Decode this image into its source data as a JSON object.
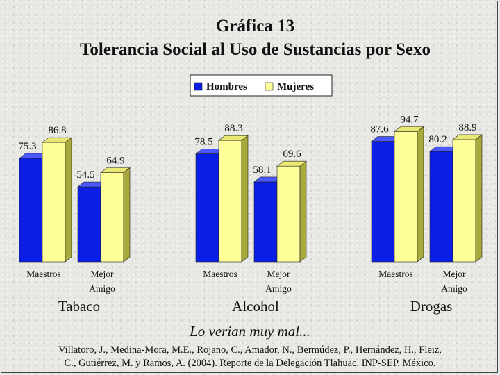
{
  "title_line1": "Gráfica 13",
  "title_line2": "Tolerancia Social al Uso de Sustancias por Sexo",
  "subtitle": "Lo verian muy mal...",
  "citation_line1": "Villatoro, J., Medina-Mora, M.E., Rojano, C., Amador, N., Bermúdez, P., Hernández, H., Fleiz,",
  "citation_line2": "C., Gutiérrez, M. y Ramos, A. (2004). Reporte de la Delegación Tlahuac. INP-SEP. México.",
  "colors": {
    "hombres": "#0a1ee6",
    "mujeres": "#ffff99"
  },
  "chart_data": {
    "type": "bar",
    "legend": [
      "Hombres",
      "Mujeres"
    ],
    "legend_placement": "top-center",
    "groups": [
      {
        "name": "Tabaco",
        "categories": [
          [
            "Maestros"
          ],
          [
            "Mejor",
            "Amigo"
          ]
        ],
        "series": [
          {
            "name": "Hombres",
            "values": [
              75.3,
              54.5
            ]
          },
          {
            "name": "Mujeres",
            "values": [
              86.8,
              64.9
            ]
          }
        ]
      },
      {
        "name": "Alcohol",
        "categories": [
          [
            "Maestros"
          ],
          [
            "Mejor",
            "Amigo"
          ]
        ],
        "series": [
          {
            "name": "Hombres",
            "values": [
              78.5,
              58.1
            ]
          },
          {
            "name": "Mujeres",
            "values": [
              88.3,
              69.6
            ]
          }
        ]
      },
      {
        "name": "Drogas",
        "categories": [
          [
            "Maestros"
          ],
          [
            "Mejor",
            "Amigo"
          ]
        ],
        "series": [
          {
            "name": "Hombres",
            "values": [
              87.6,
              80.2
            ]
          },
          {
            "name": "Mujeres",
            "values": [
              94.7,
              88.9
            ]
          }
        ]
      }
    ]
  }
}
